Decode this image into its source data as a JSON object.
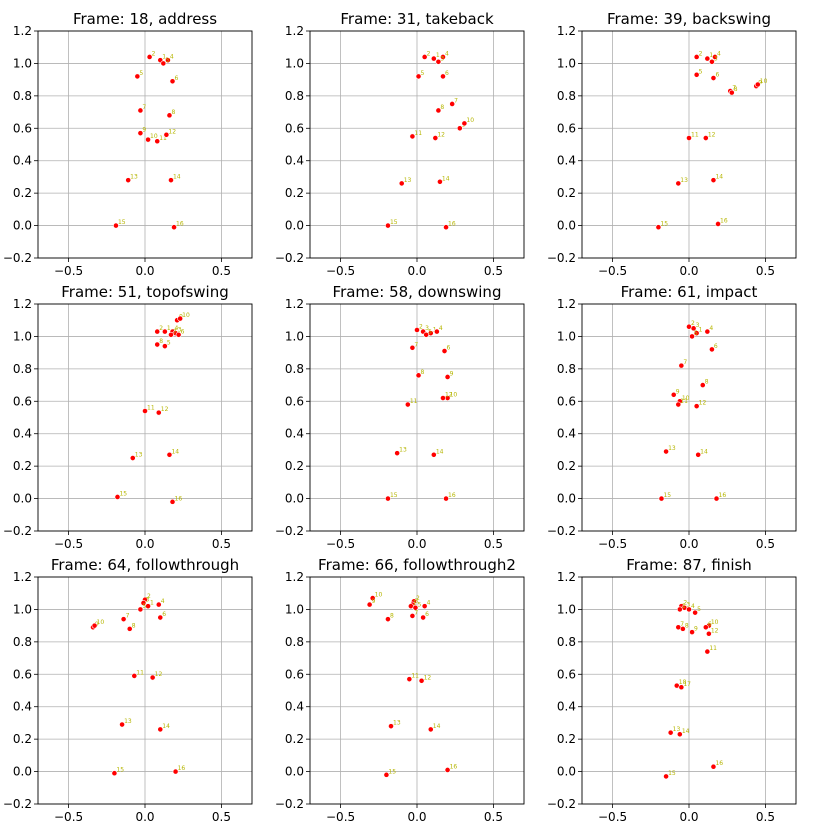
{
  "chart_data": [
    {
      "type": "scatter",
      "title": "Frame: 18, address",
      "xlim": [
        -0.7,
        0.7
      ],
      "ylim": [
        -0.2,
        1.2
      ],
      "grid": true,
      "xticks": [
        -0.5,
        0.0,
        0.5
      ],
      "xtick_labels": [
        "−0.5",
        "0.0",
        "0.5"
      ],
      "yticks": [
        -0.2,
        0.0,
        0.2,
        0.4,
        0.6,
        0.8,
        1.0,
        1.2
      ],
      "ytick_labels": [
        "−0.2",
        "0.0",
        "0.2",
        "0.4",
        "0.6",
        "0.8",
        "1.0",
        "1.2"
      ],
      "points": [
        {
          "id": "2",
          "x": 0.03,
          "y": 1.04
        },
        {
          "id": "1",
          "x": 0.1,
          "y": 1.02
        },
        {
          "id": "4",
          "x": 0.15,
          "y": 1.02
        },
        {
          "id": "3",
          "x": 0.12,
          "y": 1.0
        },
        {
          "id": "5",
          "x": -0.05,
          "y": 0.92
        },
        {
          "id": "6",
          "x": 0.18,
          "y": 0.89
        },
        {
          "id": "7",
          "x": -0.03,
          "y": 0.71
        },
        {
          "id": "8",
          "x": 0.16,
          "y": 0.68
        },
        {
          "id": "9",
          "x": -0.03,
          "y": 0.57
        },
        {
          "id": "10",
          "x": 0.02,
          "y": 0.53
        },
        {
          "id": "11",
          "x": 0.08,
          "y": 0.52
        },
        {
          "id": "12",
          "x": 0.14,
          "y": 0.56
        },
        {
          "id": "13",
          "x": -0.11,
          "y": 0.28
        },
        {
          "id": "14",
          "x": 0.17,
          "y": 0.28
        },
        {
          "id": "15",
          "x": -0.19,
          "y": 0.0
        },
        {
          "id": "16",
          "x": 0.19,
          "y": -0.01
        }
      ]
    },
    {
      "type": "scatter",
      "title": "Frame: 31, takeback",
      "xlim": [
        -0.7,
        0.7
      ],
      "ylim": [
        -0.2,
        1.2
      ],
      "grid": true,
      "xticks": [
        -0.5,
        0.0,
        0.5
      ],
      "xtick_labels": [
        "−0.5",
        "0.0",
        "0.5"
      ],
      "yticks": [
        -0.2,
        0.0,
        0.2,
        0.4,
        0.6,
        0.8,
        1.0,
        1.2
      ],
      "ytick_labels": [
        "−0.2",
        "0.0",
        "0.2",
        "0.4",
        "0.6",
        "0.8",
        "1.0",
        "1.2"
      ],
      "points": [
        {
          "id": "2",
          "x": 0.05,
          "y": 1.04
        },
        {
          "id": "1",
          "x": 0.11,
          "y": 1.03
        },
        {
          "id": "4",
          "x": 0.17,
          "y": 1.04
        },
        {
          "id": "3",
          "x": 0.14,
          "y": 1.01
        },
        {
          "id": "5",
          "x": 0.01,
          "y": 0.92
        },
        {
          "id": "6",
          "x": 0.17,
          "y": 0.92
        },
        {
          "id": "7",
          "x": 0.23,
          "y": 0.75
        },
        {
          "id": "8",
          "x": 0.14,
          "y": 0.71
        },
        {
          "id": "9",
          "x": 0.28,
          "y": 0.6
        },
        {
          "id": "10",
          "x": 0.31,
          "y": 0.63
        },
        {
          "id": "11",
          "x": -0.03,
          "y": 0.55
        },
        {
          "id": "12",
          "x": 0.12,
          "y": 0.54
        },
        {
          "id": "13",
          "x": -0.1,
          "y": 0.26
        },
        {
          "id": "14",
          "x": 0.15,
          "y": 0.27
        },
        {
          "id": "15",
          "x": -0.19,
          "y": 0.0
        },
        {
          "id": "16",
          "x": 0.19,
          "y": -0.01
        }
      ]
    },
    {
      "type": "scatter",
      "title": "Frame: 39, backswing",
      "xlim": [
        -0.7,
        0.7
      ],
      "ylim": [
        -0.2,
        1.2
      ],
      "grid": true,
      "xticks": [
        -0.5,
        0.0,
        0.5
      ],
      "xtick_labels": [
        "−0.5",
        "0.0",
        "0.5"
      ],
      "yticks": [
        -0.2,
        0.0,
        0.2,
        0.4,
        0.6,
        0.8,
        1.0,
        1.2
      ],
      "ytick_labels": [
        "−0.2",
        "0.0",
        "0.2",
        "0.4",
        "0.6",
        "0.8",
        "1.0",
        "1.2"
      ],
      "points": [
        {
          "id": "2",
          "x": 0.05,
          "y": 1.04
        },
        {
          "id": "1",
          "x": 0.12,
          "y": 1.03
        },
        {
          "id": "4",
          "x": 0.17,
          "y": 1.04
        },
        {
          "id": "3",
          "x": 0.15,
          "y": 1.01
        },
        {
          "id": "5",
          "x": 0.05,
          "y": 0.93
        },
        {
          "id": "6",
          "x": 0.16,
          "y": 0.91
        },
        {
          "id": "7",
          "x": 0.27,
          "y": 0.83
        },
        {
          "id": "8",
          "x": 0.28,
          "y": 0.82
        },
        {
          "id": "9",
          "x": 0.44,
          "y": 0.86
        },
        {
          "id": "10",
          "x": 0.45,
          "y": 0.87
        },
        {
          "id": "11",
          "x": -0.0,
          "y": 0.54
        },
        {
          "id": "12",
          "x": 0.11,
          "y": 0.54
        },
        {
          "id": "13",
          "x": -0.07,
          "y": 0.26
        },
        {
          "id": "14",
          "x": 0.16,
          "y": 0.28
        },
        {
          "id": "15",
          "x": -0.2,
          "y": -0.01
        },
        {
          "id": "16",
          "x": 0.19,
          "y": 0.01
        }
      ]
    },
    {
      "type": "scatter",
      "title": "Frame: 51, topofswing",
      "xlim": [
        -0.7,
        0.7
      ],
      "ylim": [
        -0.2,
        1.2
      ],
      "grid": true,
      "xticks": [
        -0.5,
        0.0,
        0.5
      ],
      "xtick_labels": [
        "−0.5",
        "0.0",
        "0.5"
      ],
      "yticks": [
        -0.2,
        0.0,
        0.2,
        0.4,
        0.6,
        0.8,
        1.0,
        1.2
      ],
      "ytick_labels": [
        "−0.2",
        "0.0",
        "0.2",
        "0.4",
        "0.6",
        "0.8",
        "1.0",
        "1.2"
      ],
      "points": [
        {
          "id": "2",
          "x": 0.08,
          "y": 1.03
        },
        {
          "id": "1",
          "x": 0.13,
          "y": 1.03
        },
        {
          "id": "4",
          "x": 0.18,
          "y": 1.03
        },
        {
          "id": "3",
          "x": 0.2,
          "y": 1.02
        },
        {
          "id": "6",
          "x": 0.22,
          "y": 1.01
        },
        {
          "id": "9",
          "x": 0.21,
          "y": 1.1
        },
        {
          "id": "10",
          "x": 0.23,
          "y": 1.11
        },
        {
          "id": "7",
          "x": 0.17,
          "y": 1.01
        },
        {
          "id": "8",
          "x": 0.08,
          "y": 0.95
        },
        {
          "id": "5",
          "x": 0.13,
          "y": 0.94
        },
        {
          "id": "11",
          "x": -0.0,
          "y": 0.54
        },
        {
          "id": "12",
          "x": 0.09,
          "y": 0.53
        },
        {
          "id": "13",
          "x": -0.08,
          "y": 0.25
        },
        {
          "id": "14",
          "x": 0.16,
          "y": 0.27
        },
        {
          "id": "15",
          "x": -0.18,
          "y": 0.01
        },
        {
          "id": "16",
          "x": 0.18,
          "y": -0.02
        }
      ]
    },
    {
      "type": "scatter",
      "title": "Frame: 58, downswing",
      "xlim": [
        -0.7,
        0.7
      ],
      "ylim": [
        -0.2,
        1.2
      ],
      "grid": true,
      "xticks": [
        -0.5,
        0.0,
        0.5
      ],
      "xtick_labels": [
        "−0.5",
        "0.0",
        "0.5"
      ],
      "yticks": [
        -0.2,
        0.0,
        0.2,
        0.4,
        0.6,
        0.8,
        1.0,
        1.2
      ],
      "ytick_labels": [
        "−0.2",
        "0.0",
        "0.2",
        "0.4",
        "0.6",
        "0.8",
        "1.0",
        "1.2"
      ],
      "points": [
        {
          "id": "2",
          "x": 0.0,
          "y": 1.04
        },
        {
          "id": "3",
          "x": 0.04,
          "y": 1.03
        },
        {
          "id": "1",
          "x": 0.09,
          "y": 1.02
        },
        {
          "id": "4",
          "x": 0.13,
          "y": 1.03
        },
        {
          "id": "5",
          "x": 0.06,
          "y": 1.01
        },
        {
          "id": "7",
          "x": -0.03,
          "y": 0.93
        },
        {
          "id": "6",
          "x": 0.18,
          "y": 0.91
        },
        {
          "id": "8",
          "x": 0.01,
          "y": 0.76
        },
        {
          "id": "9",
          "x": 0.2,
          "y": 0.75
        },
        {
          "id": "10",
          "x": 0.2,
          "y": 0.62
        },
        {
          "id": "12",
          "x": 0.17,
          "y": 0.62
        },
        {
          "id": "11",
          "x": -0.06,
          "y": 0.58
        },
        {
          "id": "13",
          "x": -0.13,
          "y": 0.28
        },
        {
          "id": "14",
          "x": 0.11,
          "y": 0.27
        },
        {
          "id": "15",
          "x": -0.19,
          "y": 0.0
        },
        {
          "id": "16",
          "x": 0.19,
          "y": 0.0
        }
      ]
    },
    {
      "type": "scatter",
      "title": "Frame: 61, impact",
      "xlim": [
        -0.7,
        0.7
      ],
      "ylim": [
        -0.2,
        1.2
      ],
      "grid": true,
      "xticks": [
        -0.5,
        0.0,
        0.5
      ],
      "xtick_labels": [
        "−0.5",
        "0.0",
        "0.5"
      ],
      "yticks": [
        -0.2,
        0.0,
        0.2,
        0.4,
        0.6,
        0.8,
        1.0,
        1.2
      ],
      "ytick_labels": [
        "−0.2",
        "0.0",
        "0.2",
        "0.4",
        "0.6",
        "0.8",
        "1.0",
        "1.2"
      ],
      "points": [
        {
          "id": "2",
          "x": 0.0,
          "y": 1.06
        },
        {
          "id": "3",
          "x": 0.03,
          "y": 1.05
        },
        {
          "id": "4",
          "x": 0.12,
          "y": 1.03
        },
        {
          "id": "1",
          "x": 0.05,
          "y": 1.02
        },
        {
          "id": "5",
          "x": 0.02,
          "y": 1.0
        },
        {
          "id": "6",
          "x": 0.15,
          "y": 0.92
        },
        {
          "id": "7",
          "x": -0.05,
          "y": 0.82
        },
        {
          "id": "8",
          "x": 0.09,
          "y": 0.7
        },
        {
          "id": "9",
          "x": -0.1,
          "y": 0.64
        },
        {
          "id": "10",
          "x": -0.06,
          "y": 0.6
        },
        {
          "id": "11",
          "x": -0.07,
          "y": 0.58
        },
        {
          "id": "12",
          "x": 0.05,
          "y": 0.57
        },
        {
          "id": "13",
          "x": -0.15,
          "y": 0.29
        },
        {
          "id": "14",
          "x": 0.06,
          "y": 0.27
        },
        {
          "id": "15",
          "x": -0.18,
          "y": 0.0
        },
        {
          "id": "16",
          "x": 0.18,
          "y": 0.0
        }
      ]
    },
    {
      "type": "scatter",
      "title": "Frame: 64, followthrough",
      "xlim": [
        -0.7,
        0.7
      ],
      "ylim": [
        -0.2,
        1.2
      ],
      "grid": true,
      "xticks": [
        -0.5,
        0.0,
        0.5
      ],
      "xtick_labels": [
        "−0.5",
        "0.0",
        "0.5"
      ],
      "yticks": [
        -0.2,
        0.0,
        0.2,
        0.4,
        0.6,
        0.8,
        1.0,
        1.2
      ],
      "ytick_labels": [
        "−0.2",
        "0.0",
        "0.2",
        "0.4",
        "0.6",
        "0.8",
        "1.0",
        "1.2"
      ],
      "points": [
        {
          "id": "2",
          "x": 0.0,
          "y": 1.06
        },
        {
          "id": "3",
          "x": -0.01,
          "y": 1.04
        },
        {
          "id": "4",
          "x": 0.09,
          "y": 1.03
        },
        {
          "id": "1",
          "x": 0.02,
          "y": 1.02
        },
        {
          "id": "5",
          "x": -0.03,
          "y": 1.0
        },
        {
          "id": "6",
          "x": 0.1,
          "y": 0.95
        },
        {
          "id": "7",
          "x": -0.14,
          "y": 0.94
        },
        {
          "id": "8",
          "x": -0.1,
          "y": 0.88
        },
        {
          "id": "9",
          "x": -0.34,
          "y": 0.89
        },
        {
          "id": "10",
          "x": -0.33,
          "y": 0.9
        },
        {
          "id": "11",
          "x": -0.07,
          "y": 0.59
        },
        {
          "id": "12",
          "x": 0.05,
          "y": 0.58
        },
        {
          "id": "13",
          "x": -0.15,
          "y": 0.29
        },
        {
          "id": "14",
          "x": 0.1,
          "y": 0.26
        },
        {
          "id": "15",
          "x": -0.2,
          "y": -0.01
        },
        {
          "id": "16",
          "x": 0.2,
          "y": 0.0
        }
      ]
    },
    {
      "type": "scatter",
      "title": "Frame: 66, followthrough2",
      "xlim": [
        -0.7,
        0.7
      ],
      "ylim": [
        -0.2,
        1.2
      ],
      "grid": true,
      "xticks": [
        -0.5,
        0.0,
        0.5
      ],
      "xtick_labels": [
        "−0.5",
        "0.0",
        "0.5"
      ],
      "yticks": [
        -0.2,
        0.0,
        0.2,
        0.4,
        0.6,
        0.8,
        1.0,
        1.2
      ],
      "ytick_labels": [
        "−0.2",
        "0.0",
        "0.2",
        "0.4",
        "0.6",
        "0.8",
        "1.0",
        "1.2"
      ],
      "points": [
        {
          "id": "10",
          "x": -0.29,
          "y": 1.07
        },
        {
          "id": "9",
          "x": -0.31,
          "y": 1.03
        },
        {
          "id": "2",
          "x": -0.02,
          "y": 1.05
        },
        {
          "id": "3",
          "x": -0.03,
          "y": 1.03
        },
        {
          "id": "1",
          "x": -0.04,
          "y": 1.02
        },
        {
          "id": "4",
          "x": 0.05,
          "y": 1.02
        },
        {
          "id": "5",
          "x": -0.01,
          "y": 1.01
        },
        {
          "id": "7",
          "x": -0.03,
          "y": 0.96
        },
        {
          "id": "6",
          "x": 0.04,
          "y": 0.95
        },
        {
          "id": "8",
          "x": -0.19,
          "y": 0.94
        },
        {
          "id": "11",
          "x": -0.05,
          "y": 0.57
        },
        {
          "id": "12",
          "x": 0.03,
          "y": 0.56
        },
        {
          "id": "13",
          "x": -0.17,
          "y": 0.28
        },
        {
          "id": "14",
          "x": 0.09,
          "y": 0.26
        },
        {
          "id": "15",
          "x": -0.2,
          "y": -0.02
        },
        {
          "id": "16",
          "x": 0.2,
          "y": 0.01
        }
      ]
    },
    {
      "type": "scatter",
      "title": "Frame: 87, finish",
      "xlim": [
        -0.7,
        0.7
      ],
      "ylim": [
        -0.2,
        1.2
      ],
      "grid": true,
      "xticks": [
        -0.5,
        0.0,
        0.5
      ],
      "xtick_labels": [
        "−0.5",
        "0.0",
        "0.5"
      ],
      "yticks": [
        -0.2,
        0.0,
        0.2,
        0.4,
        0.6,
        0.8,
        1.0,
        1.2
      ],
      "ytick_labels": [
        "−0.2",
        "0.0",
        "0.2",
        "0.4",
        "0.6",
        "0.8",
        "1.0",
        "1.2"
      ],
      "points": [
        {
          "id": "2",
          "x": -0.05,
          "y": 1.02
        },
        {
          "id": "3",
          "x": -0.03,
          "y": 1.01
        },
        {
          "id": "1",
          "x": -0.06,
          "y": 1.0
        },
        {
          "id": "4",
          "x": 0.0,
          "y": 1.0
        },
        {
          "id": "5",
          "x": 0.04,
          "y": 0.98
        },
        {
          "id": "10",
          "x": 0.13,
          "y": 0.9
        },
        {
          "id": "6",
          "x": 0.11,
          "y": 0.89
        },
        {
          "id": "7",
          "x": -0.07,
          "y": 0.89
        },
        {
          "id": "8",
          "x": -0.04,
          "y": 0.88
        },
        {
          "id": "9",
          "x": 0.02,
          "y": 0.86
        },
        {
          "id": "12",
          "x": 0.13,
          "y": 0.85
        },
        {
          "id": "11",
          "x": 0.12,
          "y": 0.74
        },
        {
          "id": "18",
          "x": -0.08,
          "y": 0.53
        },
        {
          "id": "17",
          "x": -0.05,
          "y": 0.52
        },
        {
          "id": "13",
          "x": -0.12,
          "y": 0.24
        },
        {
          "id": "14",
          "x": -0.06,
          "y": 0.23
        },
        {
          "id": "15",
          "x": -0.15,
          "y": -0.03
        },
        {
          "id": "16",
          "x": 0.16,
          "y": 0.03
        }
      ]
    }
  ],
  "colors": {
    "marker": "#ff0000",
    "marker_edge": "#ffffff",
    "point_label": "#b5b500",
    "grid": "#b0b0b0",
    "axes": "#000000"
  }
}
